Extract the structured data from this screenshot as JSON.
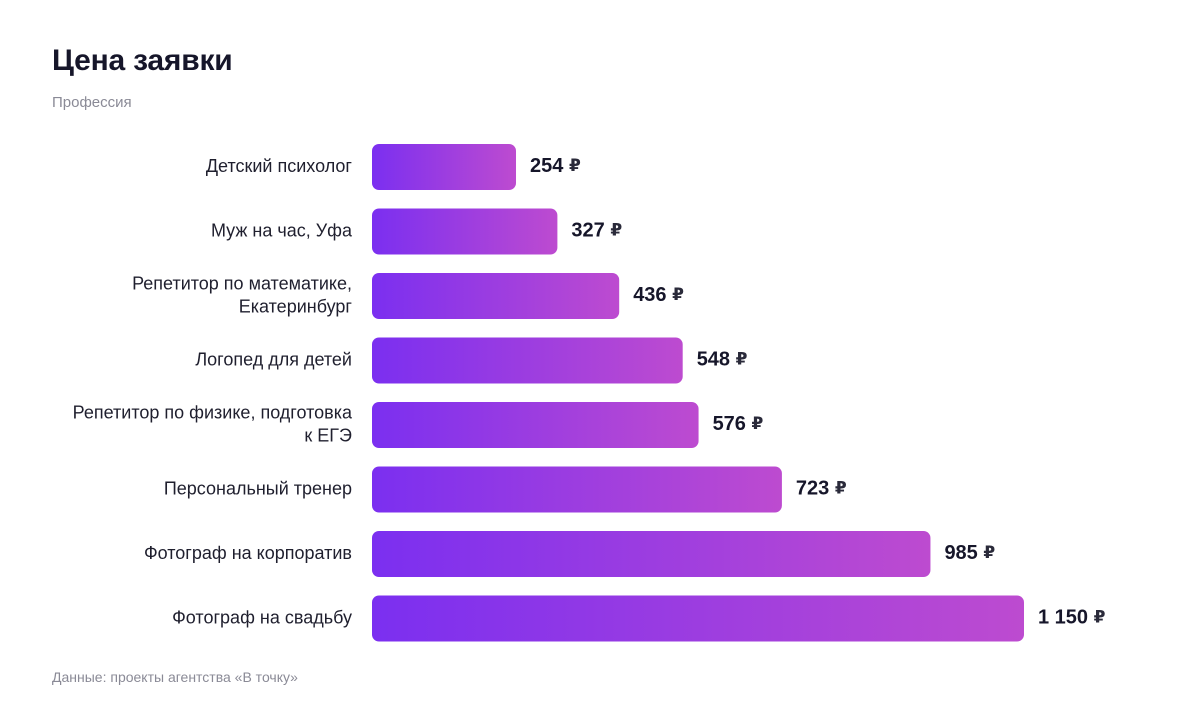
{
  "chart_data": {
    "type": "bar",
    "orientation": "horizontal",
    "title": "Цена заявки",
    "subtitle": "Профессия",
    "source": "Данные: проекты агентства «В точку»",
    "currency": "₽",
    "categories": [
      [
        "Детский психолог"
      ],
      [
        "Муж на час, Уфа"
      ],
      [
        "Репетитор по математике,",
        "Екатеринбург"
      ],
      [
        "Логопед для детей"
      ],
      [
        "Репетитор по физике, подготовка",
        "к ЕГЭ"
      ],
      [
        "Персональный тренер"
      ],
      [
        "Фотограф на корпоратив"
      ],
      [
        "Фотограф на свадьбу"
      ]
    ],
    "values": [
      254,
      327,
      436,
      548,
      576,
      723,
      985,
      1150
    ],
    "value_labels": [
      "254",
      "327",
      "436",
      "548",
      "576",
      "723",
      "985",
      "1 150"
    ],
    "xlim": [
      0,
      1150
    ],
    "grid": false,
    "colors": {
      "bar_start": "#7b2ff0",
      "bar_end": "#bd4bd0"
    }
  }
}
